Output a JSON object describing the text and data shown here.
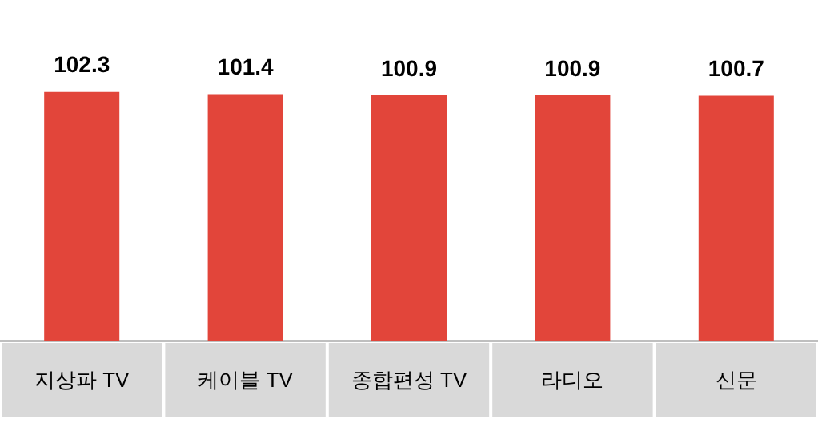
{
  "chart_data": {
    "type": "bar",
    "categories": [
      "지상파 TV",
      "케이블 TV",
      "종합편성 TV",
      "라디오",
      "신문"
    ],
    "values": [
      102.3,
      101.4,
      100.9,
      100.9,
      100.7
    ],
    "color": "#e2453a",
    "data_labels": true,
    "grid": false,
    "legend": false
  }
}
